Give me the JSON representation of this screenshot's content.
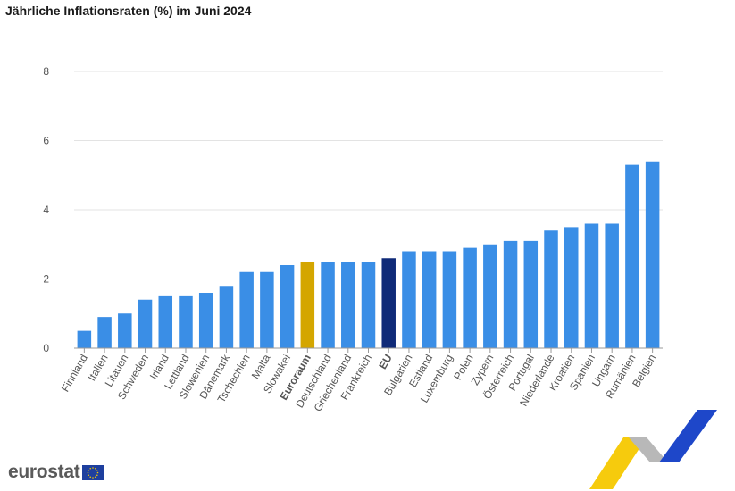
{
  "chart_data": {
    "type": "bar",
    "title": "Jährliche Inflationsraten (%) im Juni 2024",
    "xlabel": "",
    "ylabel": "",
    "ylim": [
      0,
      8
    ],
    "yticks": [
      "0",
      "2",
      "4",
      "6",
      "8"
    ],
    "grid": true,
    "categories": [
      "Finnland",
      "Italien",
      "Litauen",
      "Schweden",
      "Irland",
      "Lettland",
      "Slowenien",
      "Dänemark",
      "Tschechien",
      "Malta",
      "Slowakei",
      "Euroraum",
      "Deutschland",
      "Griechenland",
      "Frankreich",
      "EU",
      "Bulgarien",
      "Estland",
      "Luxemburg",
      "Polen",
      "Zypern",
      "Österreich",
      "Portugal",
      "Niederlande",
      "Kroatien",
      "Spanien",
      "Ungarn",
      "Rumänien",
      "Belgien"
    ],
    "values": [
      0.5,
      0.9,
      1.0,
      1.4,
      1.5,
      1.5,
      1.6,
      1.8,
      2.2,
      2.2,
      2.4,
      2.5,
      2.5,
      2.5,
      2.5,
      2.6,
      2.8,
      2.8,
      2.8,
      2.9,
      3.0,
      3.1,
      3.1,
      3.4,
      3.5,
      3.6,
      3.6,
      5.3,
      5.4
    ],
    "colors": {
      "default": "#3a8ee6",
      "Euroraum": "#d4a600",
      "EU": "#0f2a78"
    },
    "bold_categories": [
      "Euroraum",
      "EU"
    ]
  },
  "branding": {
    "logo_text": "eurostat",
    "flag_icon": "eu-flag-icon",
    "colors": {
      "yellow": "#f5c800",
      "grey": "#b8b8b8",
      "blue": "#1e47c9"
    }
  }
}
